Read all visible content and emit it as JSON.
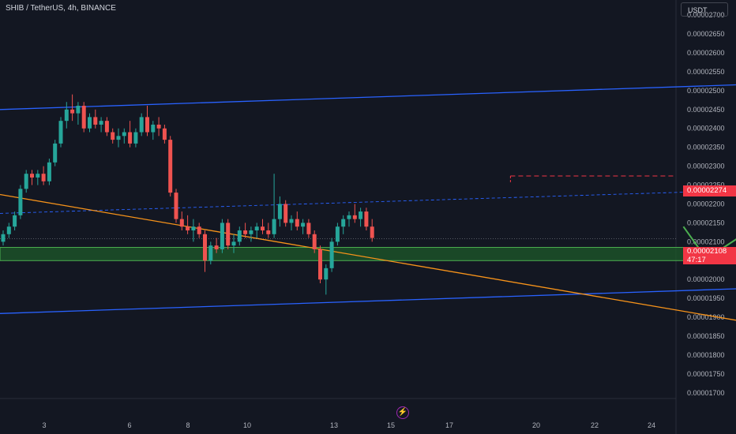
{
  "header": {
    "symbol_title": "SHIB / TetherUS, 4h, BINANCE",
    "currency": "USDT"
  },
  "price_axis": {
    "ticks": [
      "0.00002700",
      "0.00002650",
      "0.00002600",
      "0.00002550",
      "0.00002500",
      "0.00002450",
      "0.00002400",
      "0.00002350",
      "0.00002300",
      "0.00002250",
      "0.00002200",
      "0.00002150",
      "0.00002100",
      "0.00002050",
      "0.00002000",
      "0.00001950",
      "0.00001900",
      "0.00001850",
      "0.00001800",
      "0.00001750",
      "0.00001700"
    ],
    "target_badge": "0.00002274",
    "last_price_badge": "0.00002108",
    "countdown": "47:17"
  },
  "time_axis": {
    "labels": [
      "3",
      "6",
      "8",
      "10",
      "13",
      "15",
      "17",
      "20",
      "22",
      "24"
    ]
  },
  "colors": {
    "background": "#131722",
    "up": "#26a69a",
    "down": "#ef5350",
    "channel": "#2962ff",
    "trendline": "#f7931a",
    "projection": "#4caf50",
    "zone_fill": "#1e5a2a",
    "target_line": "#f23645"
  },
  "icons": {
    "replay": "lightning-bolt-icon"
  },
  "chart_data": {
    "type": "candlestick",
    "title": "SHIB / TetherUS, 4h, BINANCE",
    "ylim": [
      1.685e-05,
      2.74e-05
    ],
    "x_labels": [
      "3",
      "6",
      "8",
      "10",
      "13",
      "15",
      "17",
      "20",
      "22",
      "24"
    ],
    "candles": [
      [
        2.1e-05,
        2.13e-05,
        2.09e-05,
        2.12e-05
      ],
      [
        2.12e-05,
        2.15e-05,
        2.11e-05,
        2.14e-05
      ],
      [
        2.14e-05,
        2.18e-05,
        2.13e-05,
        2.17e-05
      ],
      [
        2.17e-05,
        2.25e-05,
        2.16e-05,
        2.24e-05
      ],
      [
        2.24e-05,
        2.29e-05,
        2.23e-05,
        2.28e-05
      ],
      [
        2.28e-05,
        2.29e-05,
        2.25e-05,
        2.27e-05
      ],
      [
        2.27e-05,
        2.29e-05,
        2.25e-05,
        2.28e-05
      ],
      [
        2.28e-05,
        2.3e-05,
        2.25e-05,
        2.26e-05
      ],
      [
        2.26e-05,
        2.32e-05,
        2.25e-05,
        2.31e-05
      ],
      [
        2.31e-05,
        2.37e-05,
        2.3e-05,
        2.36e-05
      ],
      [
        2.36e-05,
        2.43e-05,
        2.35e-05,
        2.42e-05
      ],
      [
        2.42e-05,
        2.47e-05,
        2.4e-05,
        2.45e-05
      ],
      [
        2.45e-05,
        2.49e-05,
        2.42e-05,
        2.44e-05
      ],
      [
        2.44e-05,
        2.47e-05,
        2.41e-05,
        2.46e-05
      ],
      [
        2.46e-05,
        2.47e-05,
        2.39e-05,
        2.4e-05
      ],
      [
        2.4e-05,
        2.44e-05,
        2.39e-05,
        2.43e-05
      ],
      [
        2.43e-05,
        2.45e-05,
        2.4e-05,
        2.41e-05
      ],
      [
        2.41e-05,
        2.43e-05,
        2.39e-05,
        2.42e-05
      ],
      [
        2.42e-05,
        2.43e-05,
        2.38e-05,
        2.39e-05
      ],
      [
        2.39e-05,
        2.4e-05,
        2.36e-05,
        2.37e-05
      ],
      [
        2.37e-05,
        2.4e-05,
        2.35e-05,
        2.38e-05
      ],
      [
        2.38e-05,
        2.4e-05,
        2.36e-05,
        2.39e-05
      ],
      [
        2.39e-05,
        2.42e-05,
        2.35e-05,
        2.36e-05
      ],
      [
        2.36e-05,
        2.4e-05,
        2.35e-05,
        2.39e-05
      ],
      [
        2.39e-05,
        2.44e-05,
        2.38e-05,
        2.43e-05
      ],
      [
        2.43e-05,
        2.46e-05,
        2.38e-05,
        2.39e-05
      ],
      [
        2.39e-05,
        2.42e-05,
        2.37e-05,
        2.41e-05
      ],
      [
        2.41e-05,
        2.43e-05,
        2.38e-05,
        2.4e-05
      ],
      [
        2.4e-05,
        2.41e-05,
        2.36e-05,
        2.37e-05
      ],
      [
        2.37e-05,
        2.38e-05,
        2.22e-05,
        2.23e-05
      ],
      [
        2.23e-05,
        2.24e-05,
        2.15e-05,
        2.16e-05
      ],
      [
        2.16e-05,
        2.18e-05,
        2.13e-05,
        2.14e-05
      ],
      [
        2.14e-05,
        2.17e-05,
        2.12e-05,
        2.13e-05
      ],
      [
        2.13e-05,
        2.16e-05,
        2.1e-05,
        2.14e-05
      ],
      [
        2.14e-05,
        2.15e-05,
        2.11e-05,
        2.12e-05
      ],
      [
        2.12e-05,
        2.13e-05,
        2.02e-05,
        2.05e-05
      ],
      [
        2.05e-05,
        2.1e-05,
        2.04e-05,
        2.09e-05
      ],
      [
        2.09e-05,
        2.11e-05,
        2.07e-05,
        2.08e-05
      ],
      [
        2.08e-05,
        2.16e-05,
        2.07e-05,
        2.15e-05
      ],
      [
        2.15e-05,
        2.16e-05,
        2.08e-05,
        2.09e-05
      ],
      [
        2.09e-05,
        2.12e-05,
        2.07e-05,
        2.1e-05
      ],
      [
        2.1e-05,
        2.14e-05,
        2.09e-05,
        2.13e-05
      ],
      [
        2.13e-05,
        2.15e-05,
        2.11e-05,
        2.12e-05
      ],
      [
        2.12e-05,
        2.14e-05,
        2.1e-05,
        2.13e-05
      ],
      [
        2.13e-05,
        2.15e-05,
        2.11e-05,
        2.14e-05
      ],
      [
        2.14e-05,
        2.16e-05,
        2.12e-05,
        2.13e-05
      ],
      [
        2.13e-05,
        2.15e-05,
        2.11e-05,
        2.12e-05
      ],
      [
        2.12e-05,
        2.28e-05,
        2.11e-05,
        2.16e-05
      ],
      [
        2.16e-05,
        2.22e-05,
        2.14e-05,
        2.2e-05
      ],
      [
        2.2e-05,
        2.21e-05,
        2.14e-05,
        2.15e-05
      ],
      [
        2.15e-05,
        2.17e-05,
        2.13e-05,
        2.16e-05
      ],
      [
        2.16e-05,
        2.18e-05,
        2.13e-05,
        2.14e-05
      ],
      [
        2.14e-05,
        2.16e-05,
        2.12e-05,
        2.15e-05
      ],
      [
        2.15e-05,
        2.16e-05,
        2.11e-05,
        2.12e-05
      ],
      [
        2.12e-05,
        2.13e-05,
        2.07e-05,
        2.08e-05
      ],
      [
        2.08e-05,
        2.09e-05,
        1.99e-05,
        2e-05
      ],
      [
        2e-05,
        2.04e-05,
        1.96e-05,
        2.03e-05
      ],
      [
        2.03e-05,
        2.11e-05,
        2.02e-05,
        2.1e-05
      ],
      [
        2.1e-05,
        2.15e-05,
        2.09e-05,
        2.14e-05
      ],
      [
        2.14e-05,
        2.17e-05,
        2.12e-05,
        2.16e-05
      ],
      [
        2.16e-05,
        2.18e-05,
        2.14e-05,
        2.17e-05
      ],
      [
        2.17e-05,
        2.2e-05,
        2.15e-05,
        2.16e-05
      ],
      [
        2.16e-05,
        2.19e-05,
        2.14e-05,
        2.18e-05
      ],
      [
        2.18e-05,
        2.19e-05,
        2.13e-05,
        2.14e-05
      ],
      [
        2.14e-05,
        2.16e-05,
        2.1e-05,
        2.11e-05
      ]
    ],
    "channel_upper": [
      [
        0,
        2.45e-05
      ],
      [
        185,
        2.545e-05
      ]
    ],
    "channel_lower": [
      [
        0,
        1.91e-05
      ],
      [
        185,
        2.005e-05
      ]
    ],
    "dashed_midline": [
      [
        0,
        2.175e-05
      ],
      [
        200,
        2.27e-05
      ]
    ],
    "trendline": [
      [
        0,
        2.225e-05
      ],
      [
        151,
        1.83e-05
      ]
    ],
    "support_zone": {
      "from": [
        0,
        185
      ],
      "low": 2.05e-05,
      "high": 2.085e-05
    },
    "target_line": {
      "from": 88,
      "price": 2.274e-05
    },
    "projection_path": [
      [
        118,
        2.14e-05
      ],
      [
        122,
        2.055e-05
      ],
      [
        131,
        2.145e-05
      ],
      [
        135,
        2.095e-05
      ],
      [
        151,
        2.27e-05
      ]
    ],
    "last_price": 2.108e-05
  }
}
